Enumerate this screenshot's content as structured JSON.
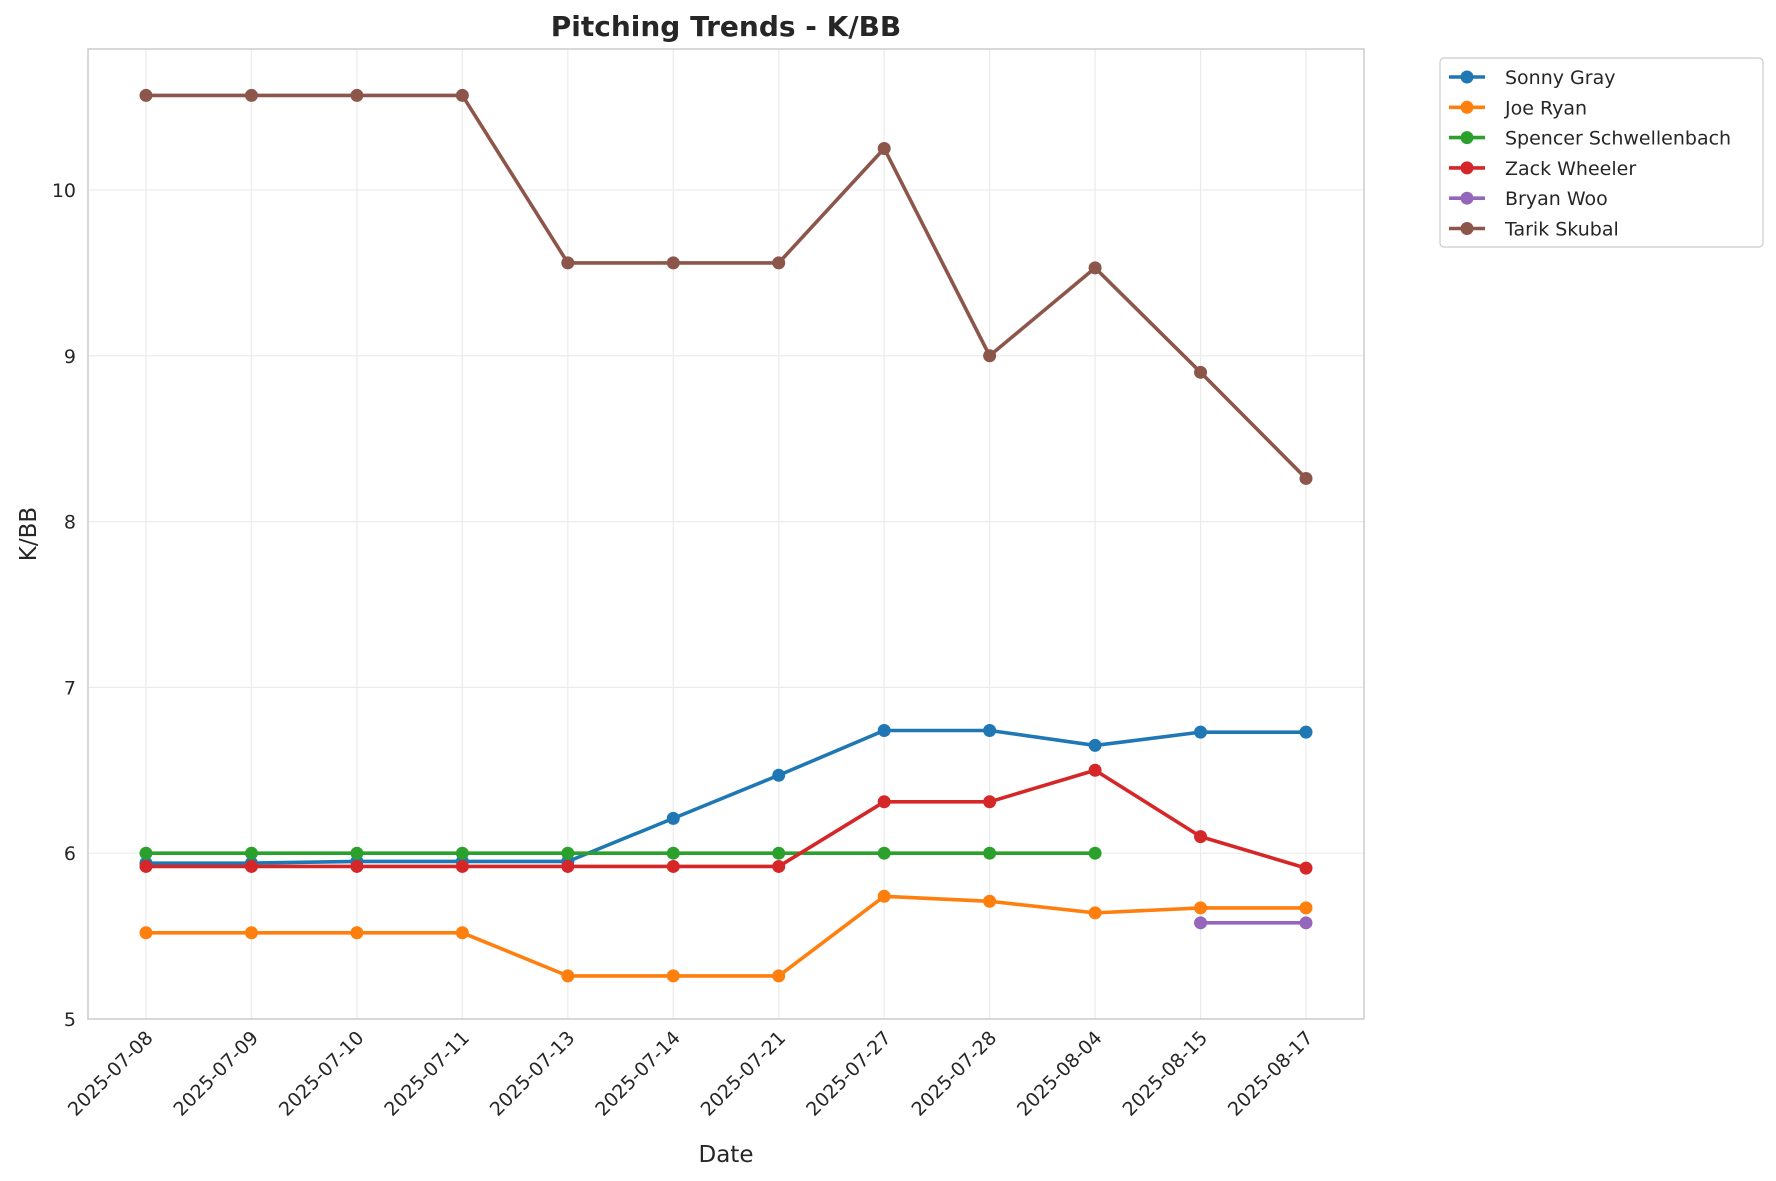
{
  "chart_data": {
    "type": "line",
    "title": "Pitching Trends - K/BB",
    "xlabel": "Date",
    "ylabel": "K/BB",
    "ylim": [
      5,
      10.85
    ],
    "yticks": [
      5,
      6,
      7,
      8,
      9,
      10
    ],
    "grid": true,
    "legend_position": "outside-top-right",
    "x": [
      "2025-07-08",
      "2025-07-09",
      "2025-07-10",
      "2025-07-11",
      "2025-07-13",
      "2025-07-14",
      "2025-07-21",
      "2025-07-27",
      "2025-07-28",
      "2025-08-04",
      "2025-08-15",
      "2025-08-17"
    ],
    "series": [
      {
        "name": "Sonny Gray",
        "color": "#1f77b4",
        "values": [
          5.94,
          5.94,
          5.95,
          5.95,
          5.95,
          6.21,
          6.47,
          6.74,
          6.74,
          6.65,
          6.73,
          6.73
        ]
      },
      {
        "name": "Joe Ryan",
        "color": "#ff7f0e",
        "values": [
          5.52,
          5.52,
          5.52,
          5.52,
          5.26,
          5.26,
          5.26,
          5.74,
          5.71,
          5.64,
          5.67,
          5.67
        ]
      },
      {
        "name": "Spencer Schwellenbach",
        "color": "#2ca02c",
        "values": [
          6.0,
          6.0,
          6.0,
          6.0,
          6.0,
          6.0,
          6.0,
          6.0,
          6.0,
          6.0,
          null,
          null
        ]
      },
      {
        "name": "Zack Wheeler",
        "color": "#d62728",
        "values": [
          5.92,
          5.92,
          5.92,
          5.92,
          5.92,
          5.92,
          5.92,
          6.31,
          6.31,
          6.5,
          6.1,
          5.91
        ]
      },
      {
        "name": "Bryan Woo",
        "color": "#9467bd",
        "values": [
          null,
          null,
          null,
          null,
          null,
          null,
          null,
          null,
          null,
          null,
          5.58,
          5.58
        ]
      },
      {
        "name": "Tarik Skubal",
        "color": "#8c564b",
        "values": [
          10.57,
          10.57,
          10.57,
          10.57,
          9.56,
          9.56,
          9.56,
          10.25,
          9.0,
          9.53,
          8.9,
          8.26
        ]
      }
    ]
  }
}
